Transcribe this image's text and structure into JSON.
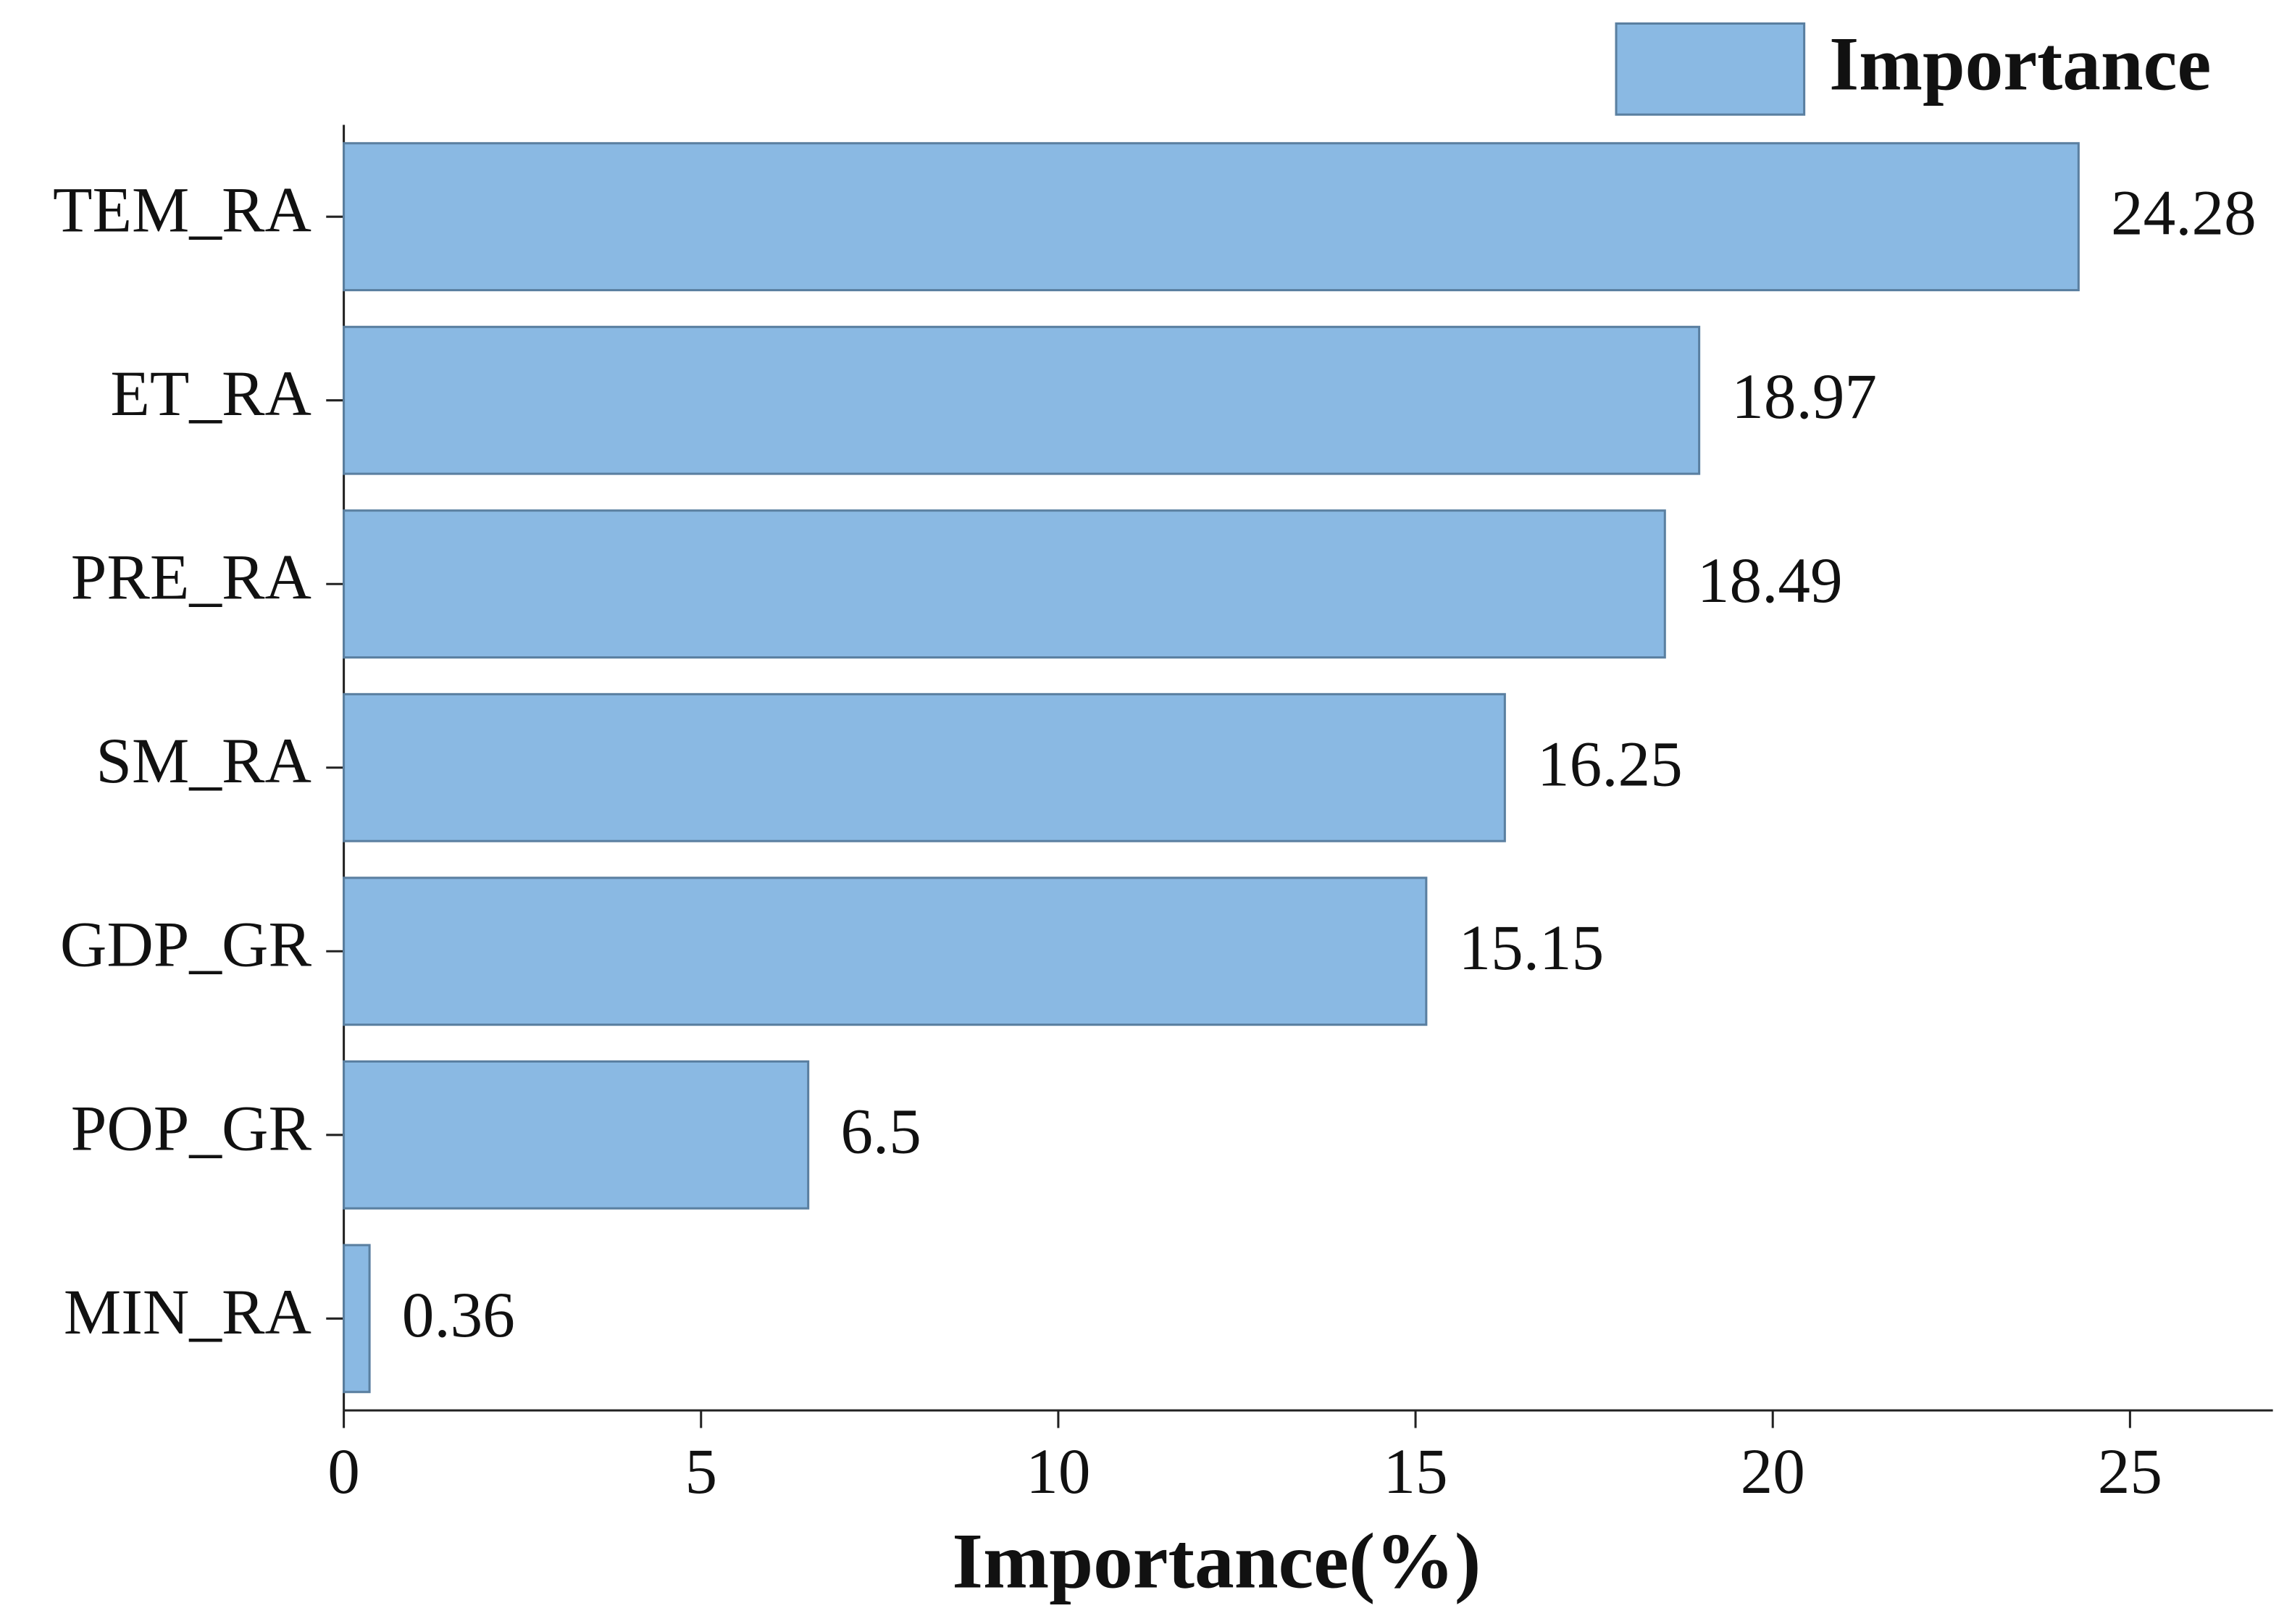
{
  "chart_data": {
    "type": "bar",
    "orientation": "horizontal",
    "x_label": "Importance(%)",
    "categories": [
      "TEM_RA",
      "ET_RA",
      "PRE_RA",
      "SM_RA",
      "GDP_GR",
      "POP_GR",
      "MIN_RA"
    ],
    "series": [
      {
        "name": "Importance",
        "color": "#8ab9e3",
        "values": [
          24.28,
          18.97,
          18.49,
          16.25,
          15.15,
          6.5,
          0.36
        ]
      }
    ],
    "xlim": [
      0,
      27
    ],
    "xticks": [
      0,
      5,
      10,
      15,
      20,
      25
    ],
    "legend": "top-right",
    "grid": false
  }
}
